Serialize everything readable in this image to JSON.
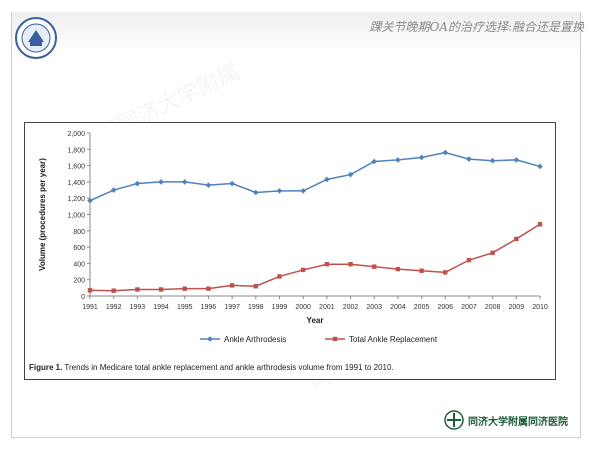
{
  "header": {
    "title": "踝关节晚期OA的治疗选择:融合还是置换"
  },
  "footer": {
    "hospital_name": "同济大学附属同济医院"
  },
  "colors": {
    "arthrodesis": "#4f81bd",
    "replacement": "#c0504d",
    "brand": "#1d5e3a"
  },
  "figure": {
    "caption_label": "Figure 1.",
    "caption_text": "Trends in Medicare total ankle replacement and ankle arthrodesis volume from 1991 to 2010."
  },
  "watermarks": [
    "上海同济大学附属",
    "同济医院 骨科 俞光荣"
  ],
  "chart_data": {
    "type": "line",
    "xlabel": "Year",
    "ylabel": "Volume (procedures per year)",
    "ylim": [
      0,
      2000
    ],
    "yticks": [
      "0",
      "200",
      "400",
      "600",
      "800",
      "1,000",
      "1,200",
      "1,400",
      "1,600",
      "1,800",
      "2,000"
    ],
    "categories": [
      "1991",
      "1992",
      "1993",
      "1994",
      "1995",
      "1996",
      "1997",
      "1998",
      "1999",
      "2000",
      "2001",
      "2002",
      "2003",
      "2004",
      "2005",
      "2006",
      "2007",
      "2008",
      "2009",
      "2010"
    ],
    "series": [
      {
        "name": "Ankle Arthrodesis",
        "values": [
          1170,
          1300,
          1380,
          1400,
          1400,
          1360,
          1380,
          1270,
          1290,
          1290,
          1430,
          1490,
          1650,
          1670,
          1700,
          1760,
          1680,
          1660,
          1670,
          1590
        ]
      },
      {
        "name": "Total Ankle Replacement",
        "values": [
          70,
          65,
          80,
          80,
          90,
          90,
          130,
          120,
          240,
          320,
          390,
          390,
          360,
          330,
          310,
          290,
          440,
          530,
          700,
          880
        ]
      }
    ],
    "grid": false,
    "legend": "bottom"
  }
}
